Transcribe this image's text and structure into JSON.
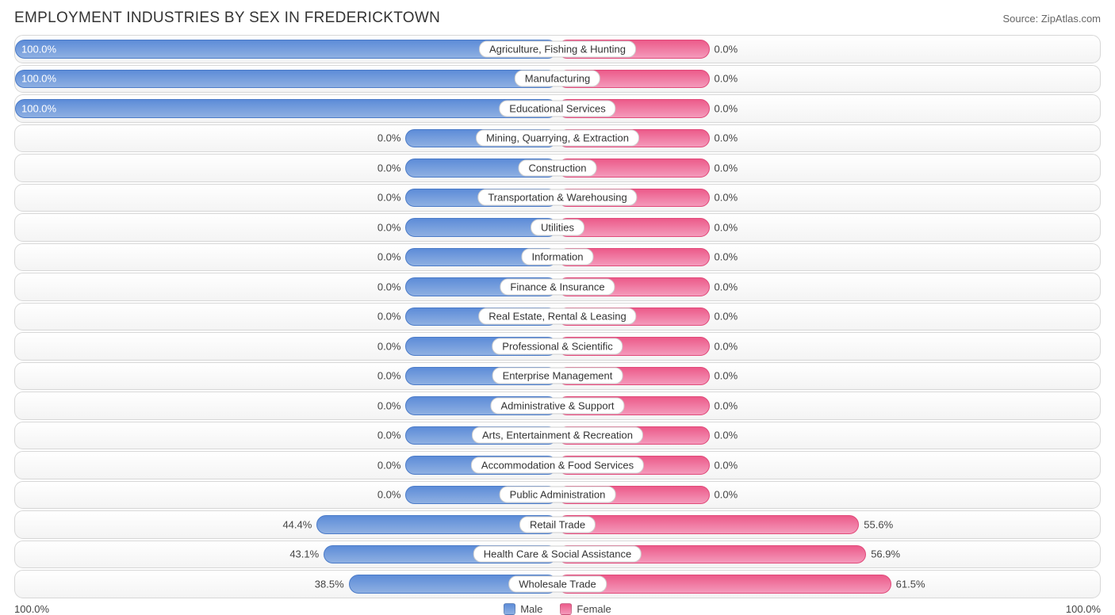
{
  "title": "EMPLOYMENT INDUSTRIES BY SEX IN FREDERICKTOWN",
  "source": "Source: ZipAtlas.com",
  "axis_left": "100.0%",
  "axis_right": "100.0%",
  "legend": {
    "male": "Male",
    "female": "Female"
  },
  "colors": {
    "male_top": "#5d8cd8",
    "male_bottom": "#8fb0e2",
    "male_border": "#4b7bc8",
    "female_top": "#ec5b8a",
    "female_bottom": "#f49abb",
    "female_border": "#e14a7a",
    "row_border": "#d7d7d7",
    "row_bg_top": "#ffffff",
    "row_bg_bottom": "#f4f4f4",
    "text": "#333333",
    "text_muted": "#666666"
  },
  "chart": {
    "type": "diverging-bar",
    "min_bar_pct": 28,
    "label_fontsize": 13,
    "title_fontsize": 19,
    "row_height": 35.5,
    "bar_radius": 12,
    "rows": [
      {
        "label": "Agriculture, Fishing & Hunting",
        "male": 100.0,
        "female": 0.0
      },
      {
        "label": "Manufacturing",
        "male": 100.0,
        "female": 0.0
      },
      {
        "label": "Educational Services",
        "male": 100.0,
        "female": 0.0
      },
      {
        "label": "Mining, Quarrying, & Extraction",
        "male": 0.0,
        "female": 0.0
      },
      {
        "label": "Construction",
        "male": 0.0,
        "female": 0.0
      },
      {
        "label": "Transportation & Warehousing",
        "male": 0.0,
        "female": 0.0
      },
      {
        "label": "Utilities",
        "male": 0.0,
        "female": 0.0
      },
      {
        "label": "Information",
        "male": 0.0,
        "female": 0.0
      },
      {
        "label": "Finance & Insurance",
        "male": 0.0,
        "female": 0.0
      },
      {
        "label": "Real Estate, Rental & Leasing",
        "male": 0.0,
        "female": 0.0
      },
      {
        "label": "Professional & Scientific",
        "male": 0.0,
        "female": 0.0
      },
      {
        "label": "Enterprise Management",
        "male": 0.0,
        "female": 0.0
      },
      {
        "label": "Administrative & Support",
        "male": 0.0,
        "female": 0.0
      },
      {
        "label": "Arts, Entertainment & Recreation",
        "male": 0.0,
        "female": 0.0
      },
      {
        "label": "Accommodation & Food Services",
        "male": 0.0,
        "female": 0.0
      },
      {
        "label": "Public Administration",
        "male": 0.0,
        "female": 0.0
      },
      {
        "label": "Retail Trade",
        "male": 44.4,
        "female": 55.6
      },
      {
        "label": "Health Care & Social Assistance",
        "male": 43.1,
        "female": 56.9
      },
      {
        "label": "Wholesale Trade",
        "male": 38.5,
        "female": 61.5
      }
    ]
  }
}
